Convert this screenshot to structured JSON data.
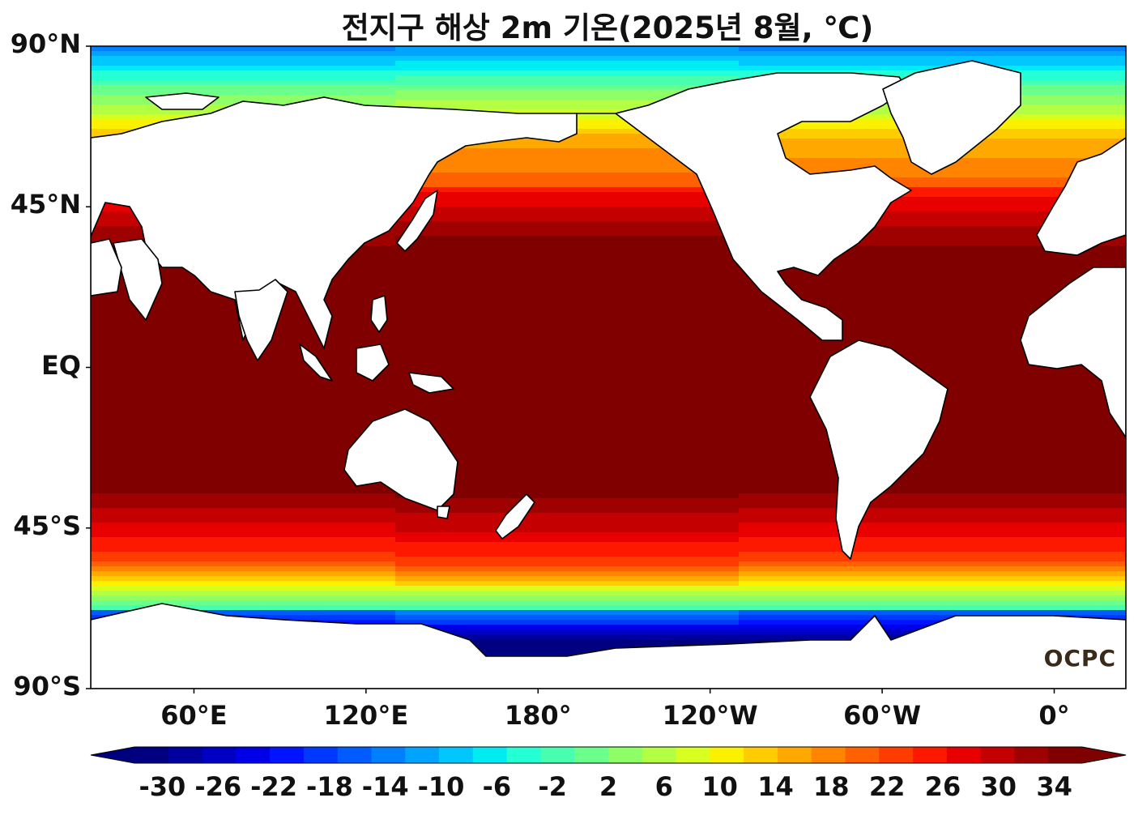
{
  "title": "전지구 해상 2m 기온(2025년 8월, ℃)",
  "logo": "OCPC",
  "map": {
    "projection": "equirectangular",
    "center_longitude": -154,
    "lon_range_east": [
      24,
      385
    ],
    "lat_range": [
      -90,
      90
    ],
    "land_color": "#ffffff",
    "coastline_color": "#000000"
  },
  "y_ticks": [
    {
      "label": "90°N",
      "lat": 90
    },
    {
      "label": "45°N",
      "lat": 45
    },
    {
      "label": "EQ",
      "lat": 0
    },
    {
      "label": "45°S",
      "lat": -45
    },
    {
      "label": "90°S",
      "lat": -90
    }
  ],
  "x_ticks": [
    {
      "label": "60°E",
      "lon": 60
    },
    {
      "label": "120°E",
      "lon": 120
    },
    {
      "label": "180°",
      "lon": 180
    },
    {
      "label": "120°W",
      "lon": 240
    },
    {
      "label": "60°W",
      "lon": 300
    },
    {
      "label": "0°",
      "lon": 360
    }
  ],
  "colorbar": {
    "min": -32,
    "max": 36,
    "step": 2,
    "extend": "both",
    "tick_labels": [
      "-30",
      "-26",
      "-22",
      "-18",
      "-14",
      "-10",
      "-6",
      "-2",
      "2",
      "6",
      "10",
      "14",
      "18",
      "22",
      "26",
      "30",
      "34"
    ],
    "tick_values": [
      -30,
      -26,
      -22,
      -18,
      -14,
      -10,
      -6,
      -2,
      2,
      6,
      10,
      14,
      18,
      22,
      26,
      30,
      34
    ],
    "colors": [
      "#000080",
      "#00009f",
      "#0000c4",
      "#0000e8",
      "#0014ff",
      "#0038ff",
      "#005cff",
      "#0080ff",
      "#00a4ff",
      "#00c8ff",
      "#00ecf3",
      "#24ffd3",
      "#48ffaf",
      "#6bff8b",
      "#8fff68",
      "#b3ff44",
      "#d7ff20",
      "#fbf000",
      "#ffcc00",
      "#ffa800",
      "#ff8400",
      "#ff6000",
      "#ff3c00",
      "#ff1800",
      "#e80000",
      "#c40000",
      "#9f0000",
      "#800000"
    ],
    "under_color": "#00007f",
    "over_color": "#7f0000"
  }
}
